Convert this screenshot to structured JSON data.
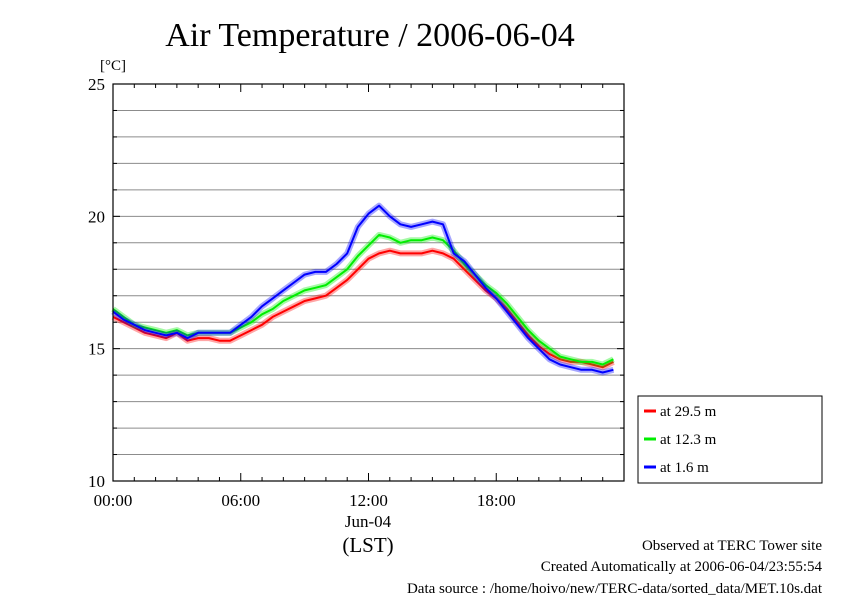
{
  "chart_data": {
    "type": "line",
    "title": "Air Temperature / 2006-06-04",
    "ylabel": "[°C]",
    "ylim": [
      10,
      25
    ],
    "yticks": [
      "10",
      "15",
      "20",
      "25"
    ],
    "xlim": [
      0,
      24
    ],
    "xticks": [
      "00:00",
      "06:00",
      "12:00",
      "18:00"
    ],
    "x_date_label": "Jun-04",
    "xlabel": "(LST)",
    "grid": "horizontal, every 1 °C",
    "legend_position": "right",
    "x": [
      0,
      0.5,
      1,
      1.5,
      2,
      2.5,
      3,
      3.5,
      4,
      4.5,
      5,
      5.5,
      6,
      6.5,
      7,
      7.5,
      8,
      8.5,
      9,
      9.5,
      10,
      10.5,
      11,
      11.5,
      12,
      12.5,
      13,
      13.5,
      14,
      14.5,
      15,
      15.5,
      16,
      16.5,
      17,
      17.5,
      18,
      18.5,
      19,
      19.5,
      20,
      20.5,
      21,
      21.5,
      22,
      22.5,
      23,
      23.5
    ],
    "series": [
      {
        "name": "at 29.5 m",
        "color": "#ff0000",
        "values": [
          16.2,
          16.0,
          15.8,
          15.6,
          15.5,
          15.4,
          15.6,
          15.3,
          15.4,
          15.4,
          15.3,
          15.3,
          15.5,
          15.7,
          15.9,
          16.2,
          16.4,
          16.6,
          16.8,
          16.9,
          17.0,
          17.3,
          17.6,
          18.0,
          18.4,
          18.6,
          18.7,
          18.6,
          18.6,
          18.6,
          18.7,
          18.6,
          18.4,
          18.0,
          17.6,
          17.2,
          16.9,
          16.5,
          16.0,
          15.5,
          15.1,
          14.8,
          14.6,
          14.5,
          14.5,
          14.4,
          14.3,
          14.5
        ]
      },
      {
        "name": "at 12.3 m",
        "color": "#00ee00",
        "values": [
          16.5,
          16.2,
          15.9,
          15.8,
          15.7,
          15.6,
          15.7,
          15.5,
          15.6,
          15.6,
          15.6,
          15.6,
          15.8,
          16.0,
          16.3,
          16.5,
          16.8,
          17.0,
          17.2,
          17.3,
          17.4,
          17.7,
          18.0,
          18.5,
          18.9,
          19.3,
          19.2,
          19.0,
          19.1,
          19.1,
          19.2,
          19.1,
          18.7,
          18.2,
          17.8,
          17.4,
          17.1,
          16.7,
          16.2,
          15.7,
          15.3,
          15.0,
          14.7,
          14.6,
          14.5,
          14.5,
          14.4,
          14.6
        ]
      },
      {
        "name": "at 1.6 m",
        "color": "#0000ff",
        "values": [
          16.4,
          16.1,
          15.9,
          15.7,
          15.6,
          15.5,
          15.6,
          15.4,
          15.6,
          15.6,
          15.6,
          15.6,
          15.9,
          16.2,
          16.6,
          16.9,
          17.2,
          17.5,
          17.8,
          17.9,
          17.9,
          18.2,
          18.6,
          19.6,
          20.1,
          20.4,
          20.0,
          19.7,
          19.6,
          19.7,
          19.8,
          19.7,
          18.6,
          18.3,
          17.8,
          17.3,
          16.9,
          16.4,
          15.9,
          15.4,
          15.0,
          14.6,
          14.4,
          14.3,
          14.2,
          14.2,
          14.1,
          14.2
        ]
      }
    ]
  },
  "footer": {
    "site": "Observed at TERC Tower site",
    "created": "Created Automatically at 2006-06-04/23:55:54",
    "source": "Data source : /home/hoivo/new/TERC-data/sorted_data/MET.10s.dat"
  }
}
